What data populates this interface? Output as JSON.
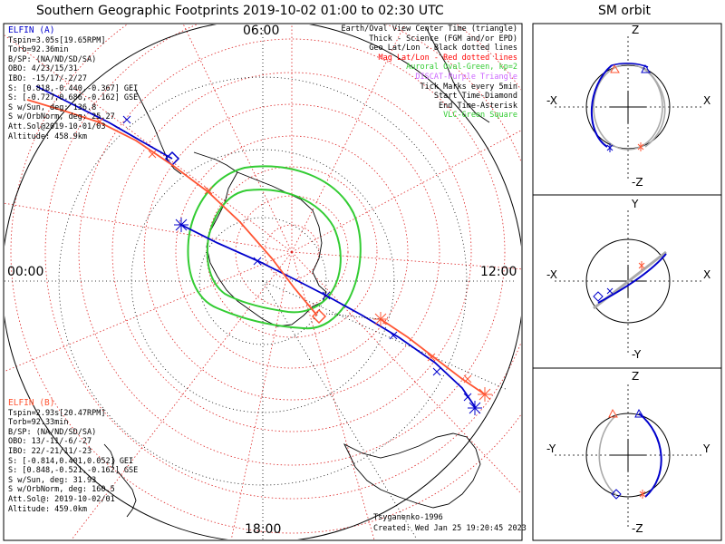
{
  "title": "Southern Geographic Footprints 2019-10-02 01:00 to 02:30 UTC",
  "orbit_title": "SM orbit",
  "clock": {
    "top": "06:00",
    "left": "00:00",
    "right": "12:00",
    "bottom": "18:00"
  },
  "elfin_a": {
    "name": "ELFIN (A)",
    "lines": [
      "Tspin=3.05s[19.65RPM]",
      "Torb=92.36min",
      "B/SP: (NA/ND/SD/SA)",
      "OBO: 4/23/15/31",
      "IBO: -15/17/-2/27",
      "S: [0.818,-0.440,-0.367] GEI",
      "S: [-0.727,0.686,-0.162] GSE",
      "S w/Sun, deg: 136.8",
      "S w/OrbNorm, deg: 25.27",
      "Att.Sol@2019-10-01/03",
      "Altitude: 458.9km"
    ]
  },
  "elfin_b": {
    "name": "ELFIN (B)",
    "lines": [
      "Tspin=2.93s[20.47RPM]",
      "Torb=92.33min",
      "B/SP: (NA/ND/SD/SA)",
      "OBO: 13/-11/-6/-27",
      "IBO: 22/-21/11/-23",
      "S: [-0.814,0.401,0.052] GEI",
      "S: [0.848,-0.521,-0.162] GSE",
      "S w/Sun, deg: 31.93",
      "S w/OrbNorm, deg: 160.5",
      "Att.Sol@: 2019-10-02/01",
      "Altitude: 459.0km"
    ]
  },
  "legend": [
    {
      "text": "Earth/Oval View Center Time (triangle)",
      "color": "#000000"
    },
    {
      "text": "Thick - Science (FGM and/or EPD)",
      "color": "#000000"
    },
    {
      "text": "Geo Lat/Lon - Black dotted lines",
      "color": "#000000"
    },
    {
      "text": "Mag Lat/Lon - Red dotted lines",
      "color": "#ff0000"
    },
    {
      "text": "Auroral Oval-Green, kp=2",
      "color": "#33cc33"
    },
    {
      "text": "DISCAT-Purple Triangle",
      "color": "#cc66ff"
    },
    {
      "text": "Tick Marks every 5min",
      "color": "#000000"
    },
    {
      "text": "Start Time-Diamond",
      "color": "#000000"
    },
    {
      "text": "End Time-Asterisk",
      "color": "#000000"
    },
    {
      "text": "VLC-Green Square",
      "color": "#33cc33"
    }
  ],
  "model": "Tsyganenko-1996",
  "created": "Created: Wed Jan 25 19:20:45 2023",
  "orbit_panels": [
    {
      "top": "Z",
      "bottom": "-Z",
      "left": "-X",
      "right": "X"
    },
    {
      "top": "Y",
      "bottom": "-Y",
      "left": "-X",
      "right": "X"
    },
    {
      "top": "Z",
      "bottom": "-Z",
      "left": "-Y",
      "right": "Y"
    }
  ],
  "colors": {
    "elfin_a": "#0000cc",
    "elfin_b": "#ff5533",
    "oval": "#33cc33",
    "mag_grid": "#dd2222",
    "geo_grid": "#000000",
    "orbit_shadow": "#aaaaaa"
  }
}
